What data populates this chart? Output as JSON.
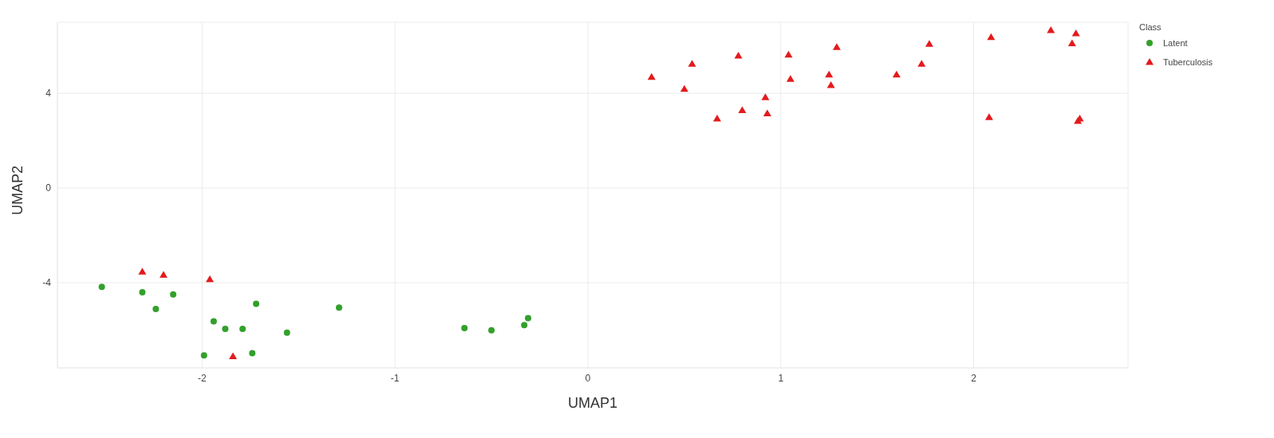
{
  "chart_data": {
    "type": "scatter",
    "xlabel": "UMAP1",
    "ylabel": "UMAP2",
    "legend_title": "Class",
    "legend": "top right",
    "grid": true,
    "xlim": [
      -2.75,
      2.8
    ],
    "xticks": [
      -2,
      -1,
      0,
      1,
      2
    ],
    "ylim": [
      -7.6,
      7.0
    ],
    "yticks": [
      -4,
      0,
      4
    ],
    "series": [
      {
        "name": "Latent",
        "color": "#33a02c",
        "marker": "circle",
        "x": [
          -2.52,
          -2.31,
          -2.24,
          -2.15,
          -1.94,
          -1.72,
          -1.88,
          -1.79,
          -1.99,
          -1.74,
          -1.56,
          -1.29,
          -0.64,
          -0.5,
          -0.33,
          -0.31
        ],
        "values": [
          -4.18,
          -4.4,
          -5.11,
          -4.5,
          -5.63,
          -4.89,
          -5.95,
          -5.95,
          -7.07,
          -6.98,
          -6.11,
          -5.05,
          -5.92,
          -6.01,
          -5.79,
          -5.5
        ]
      },
      {
        "name": "Tuberculosis",
        "color": "#e31a1c",
        "marker": "triangle",
        "x": [
          -2.31,
          -2.2,
          -1.96,
          -1.84,
          0.33,
          0.5,
          0.54,
          0.67,
          0.78,
          0.8,
          0.92,
          0.93,
          1.04,
          1.05,
          1.25,
          1.26,
          1.29,
          1.6,
          1.73,
          1.77,
          2.08,
          2.09,
          2.4,
          2.51,
          2.53,
          2.54,
          2.55
        ],
        "values": [
          -3.54,
          -3.67,
          -3.86,
          -7.11,
          4.69,
          4.18,
          5.24,
          2.93,
          5.59,
          3.28,
          3.83,
          3.15,
          5.63,
          4.6,
          4.79,
          4.34,
          5.95,
          4.79,
          5.24,
          6.08,
          2.99,
          6.37,
          6.66,
          6.11,
          6.53,
          2.83,
          2.93
        ]
      }
    ]
  }
}
